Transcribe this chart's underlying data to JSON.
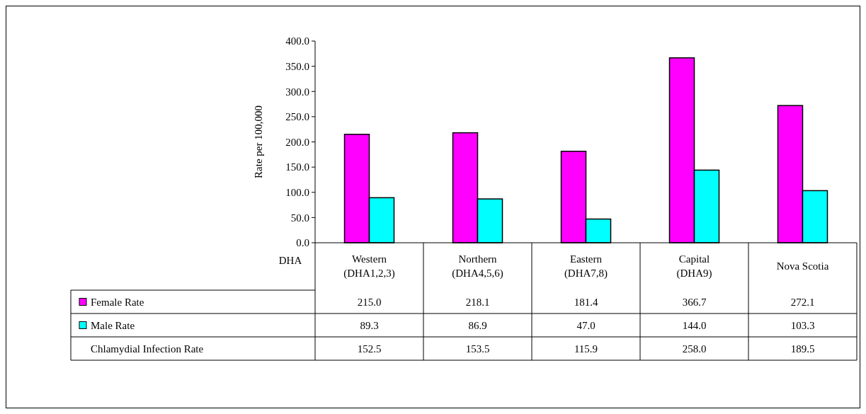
{
  "chart_data": {
    "type": "bar",
    "ylabel": "Rate per 100,000",
    "xlabel": "DHA",
    "categories": [
      "Western\n(DHA1,2,3)",
      "Northern\n(DHA4,5,6)",
      "Eastern\n(DHA7,8)",
      "Capital\n(DHA9)",
      "Nova Scotia"
    ],
    "series": [
      {
        "name": "Female Rate",
        "color": "#ff00ff",
        "values": [
          215.0,
          218.1,
          181.4,
          366.7,
          272.1
        ],
        "value_labels": [
          "215.0",
          "218.1",
          "181.4",
          "366.7",
          "272.1"
        ]
      },
      {
        "name": "Male Rate",
        "color": "#00ffff",
        "values": [
          89.3,
          86.9,
          47.0,
          144.0,
          103.3
        ],
        "value_labels": [
          "89.3",
          "86.9",
          "47.0",
          "144.0",
          "103.3"
        ]
      }
    ],
    "annotations": [
      "Chlamydial Infection Rate",
      "152.5",
      "153.5",
      "115.9",
      "258.0",
      "189.5"
    ],
    "ylim": [
      0,
      400
    ],
    "yticks": [
      {
        "value": 0,
        "label": "0.0"
      },
      {
        "value": 50,
        "label": "50.0"
      },
      {
        "value": 100,
        "label": "100.0"
      },
      {
        "value": 150,
        "label": "150.0"
      },
      {
        "value": 200,
        "label": "200.0"
      },
      {
        "value": 250,
        "label": "250.0"
      },
      {
        "value": 300,
        "label": "300.0"
      },
      {
        "value": 350,
        "label": "350.0"
      },
      {
        "value": 400,
        "label": "400.0"
      }
    ],
    "grid": false,
    "legend": "bottom"
  }
}
